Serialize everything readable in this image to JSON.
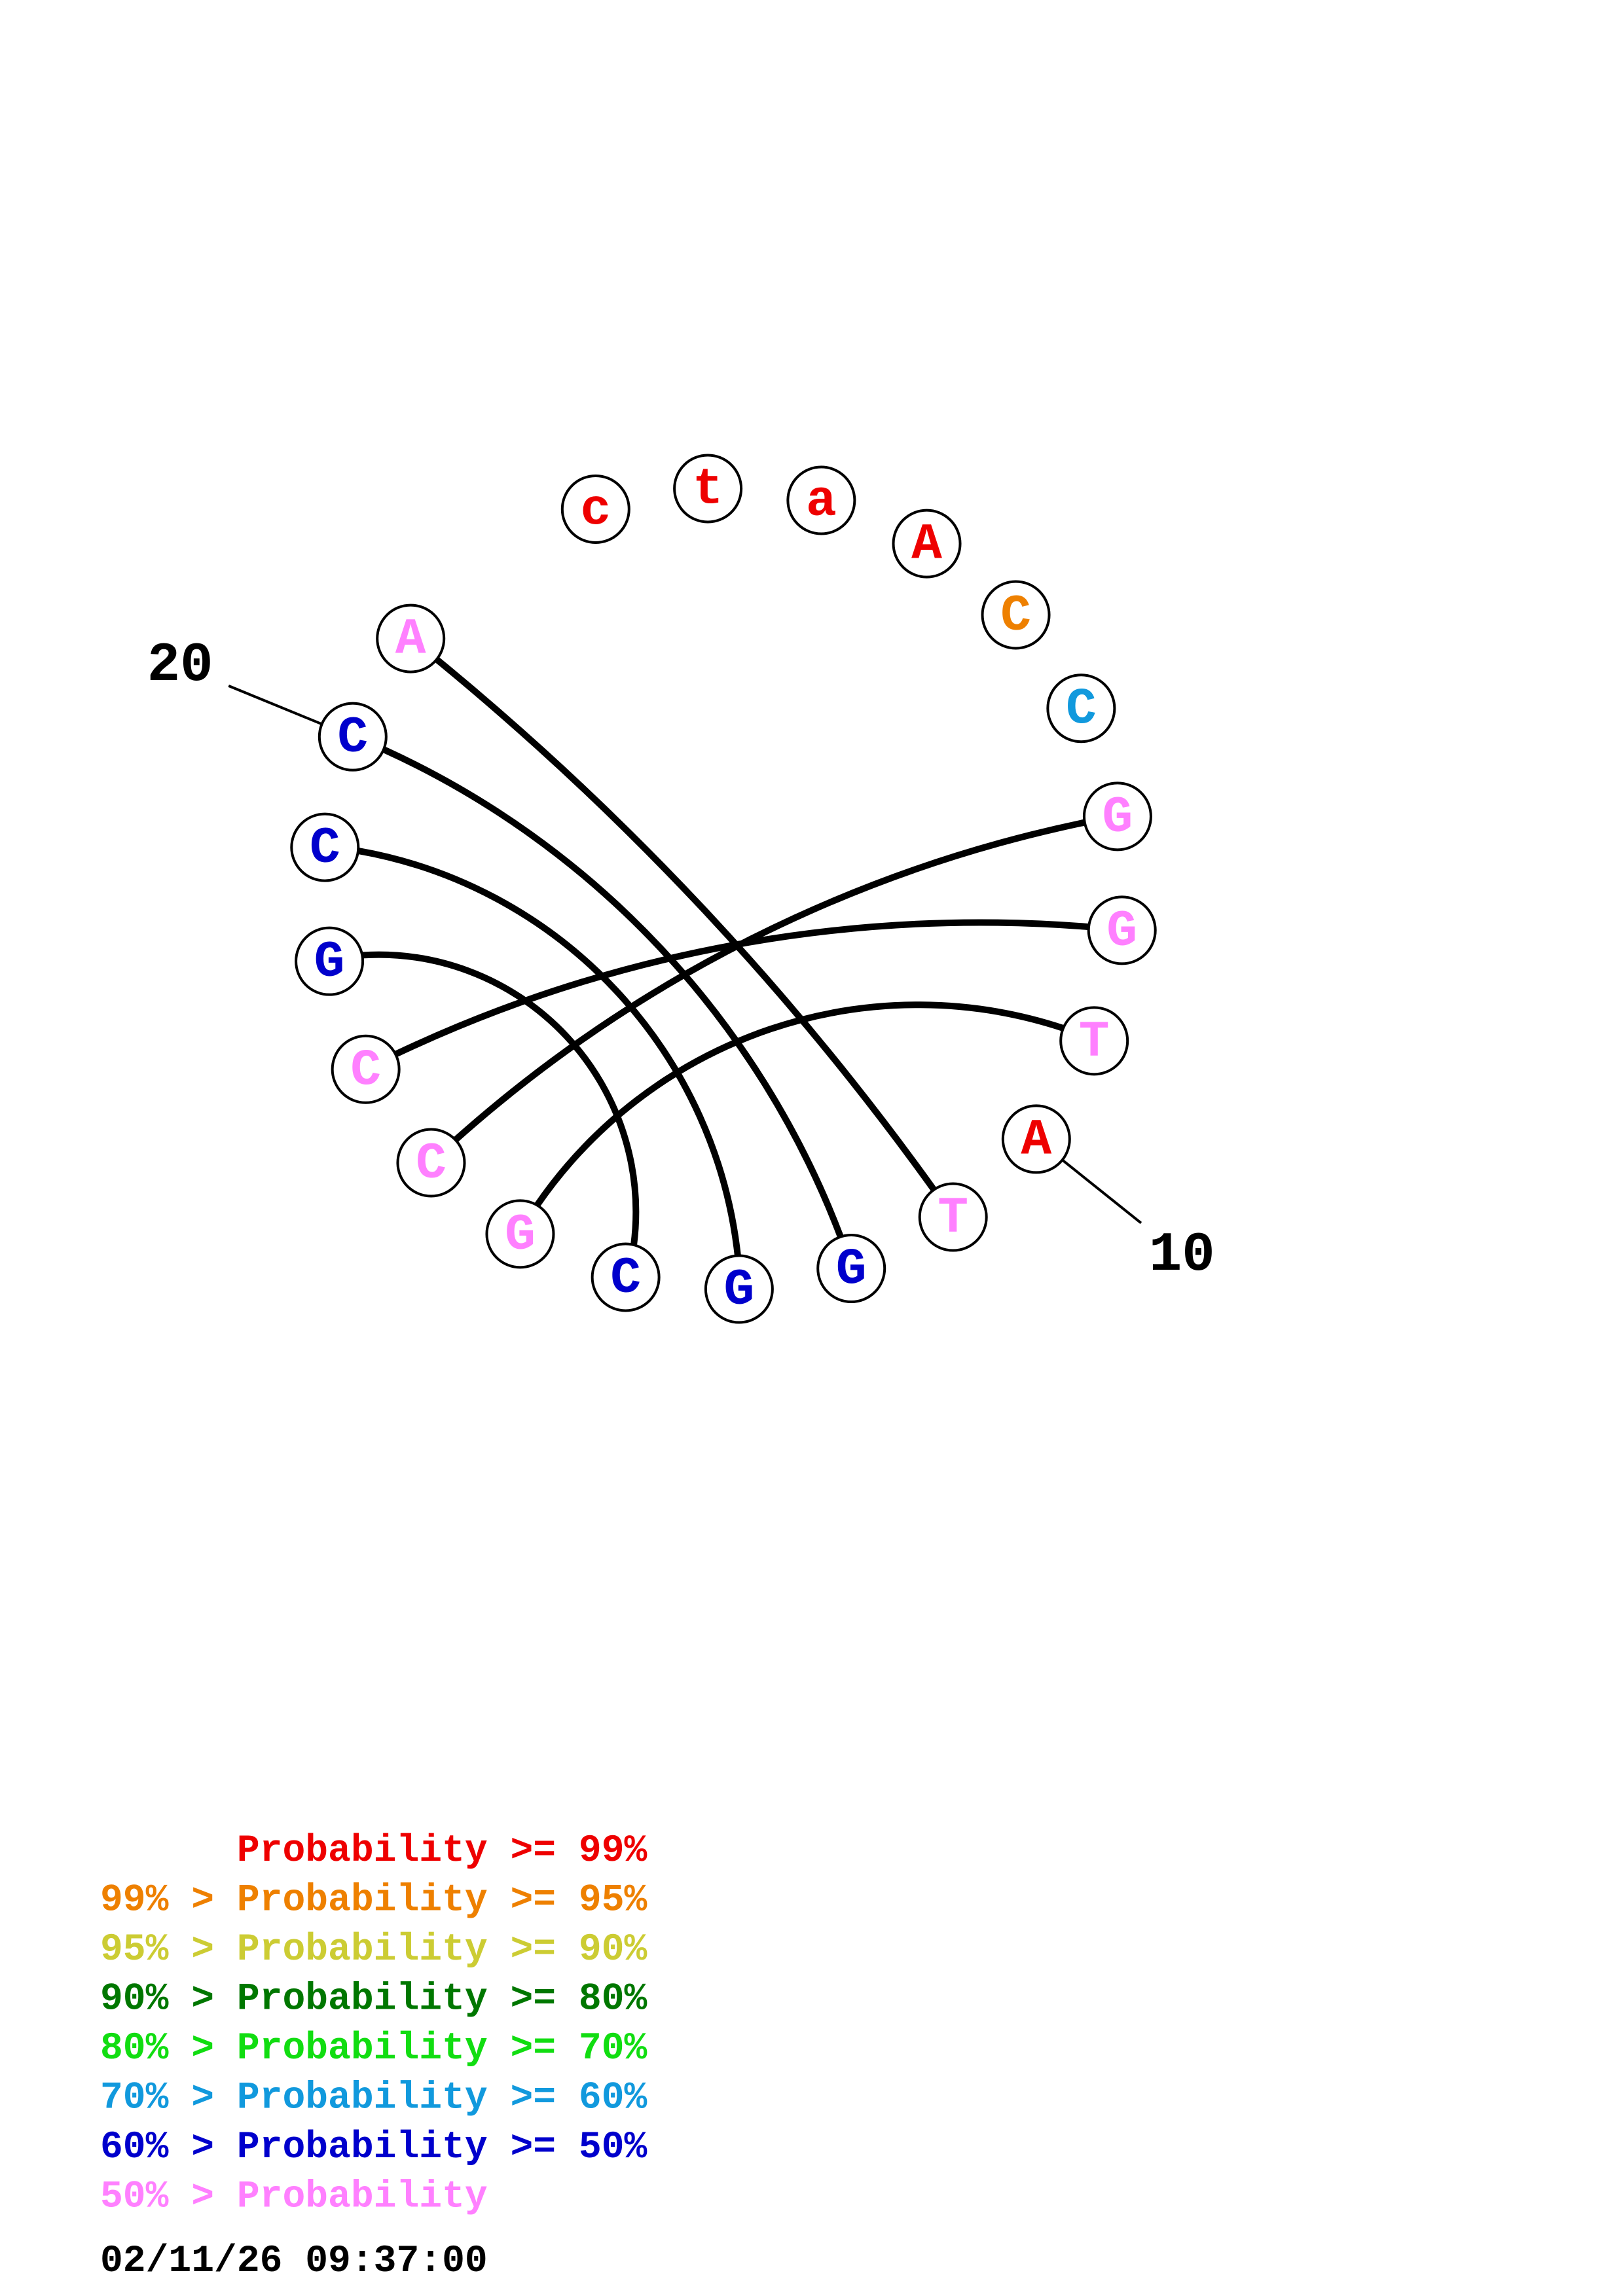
{
  "colors": {
    "p99": "#ee0000",
    "p95": "#ee8000",
    "p90": "#cccc33",
    "p80": "#007700",
    "p70": "#11dd11",
    "p60": "#1199dd",
    "p50": "#0000cc",
    "below50": "#ff80ff"
  },
  "sequence": [
    {
      "index": 1,
      "base": "c",
      "color_key": "p99"
    },
    {
      "index": 2,
      "base": "t",
      "color_key": "p99"
    },
    {
      "index": 3,
      "base": "a",
      "color_key": "p99"
    },
    {
      "index": 4,
      "base": "A",
      "color_key": "p99"
    },
    {
      "index": 5,
      "base": "C",
      "color_key": "p95"
    },
    {
      "index": 6,
      "base": "C",
      "color_key": "p60"
    },
    {
      "index": 7,
      "base": "G",
      "color_key": "below50"
    },
    {
      "index": 8,
      "base": "G",
      "color_key": "below50"
    },
    {
      "index": 9,
      "base": "T",
      "color_key": "below50"
    },
    {
      "index": 10,
      "base": "A",
      "color_key": "p99"
    },
    {
      "index": 11,
      "base": "T",
      "color_key": "below50"
    },
    {
      "index": 12,
      "base": "G",
      "color_key": "p50"
    },
    {
      "index": 13,
      "base": "G",
      "color_key": "p50"
    },
    {
      "index": 14,
      "base": "C",
      "color_key": "p50"
    },
    {
      "index": 15,
      "base": "G",
      "color_key": "below50"
    },
    {
      "index": 16,
      "base": "C",
      "color_key": "below50"
    },
    {
      "index": 17,
      "base": "C",
      "color_key": "below50"
    },
    {
      "index": 18,
      "base": "G",
      "color_key": "p50"
    },
    {
      "index": 19,
      "base": "C",
      "color_key": "p50"
    },
    {
      "index": 20,
      "base": "C",
      "color_key": "p50"
    },
    {
      "index": 21,
      "base": "A",
      "color_key": "below50"
    }
  ],
  "pairs": [
    [
      7,
      16
    ],
    [
      8,
      17
    ],
    [
      9,
      15
    ],
    [
      11,
      21
    ],
    [
      12,
      20
    ],
    [
      13,
      19
    ],
    [
      14,
      18
    ]
  ],
  "position_labels": [
    {
      "index": 10,
      "text": "10"
    },
    {
      "index": 20,
      "text": "20"
    }
  ],
  "legend": [
    {
      "text": "      Probability >= 99%",
      "color_key": "p99"
    },
    {
      "text": "99% > Probability >= 95%",
      "color_key": "p95"
    },
    {
      "text": "95% > Probability >= 90%",
      "color_key": "p90"
    },
    {
      "text": "90% > Probability >= 80%",
      "color_key": "p80"
    },
    {
      "text": "80% > Probability >= 70%",
      "color_key": "p70"
    },
    {
      "text": "70% > Probability >= 60%",
      "color_key": "p60"
    },
    {
      "text": "60% > Probability >= 50%",
      "color_key": "p50"
    },
    {
      "text": "50% > Probability",
      "color_key": "below50"
    }
  ],
  "timestamp": "02/11/26 09:37:00"
}
